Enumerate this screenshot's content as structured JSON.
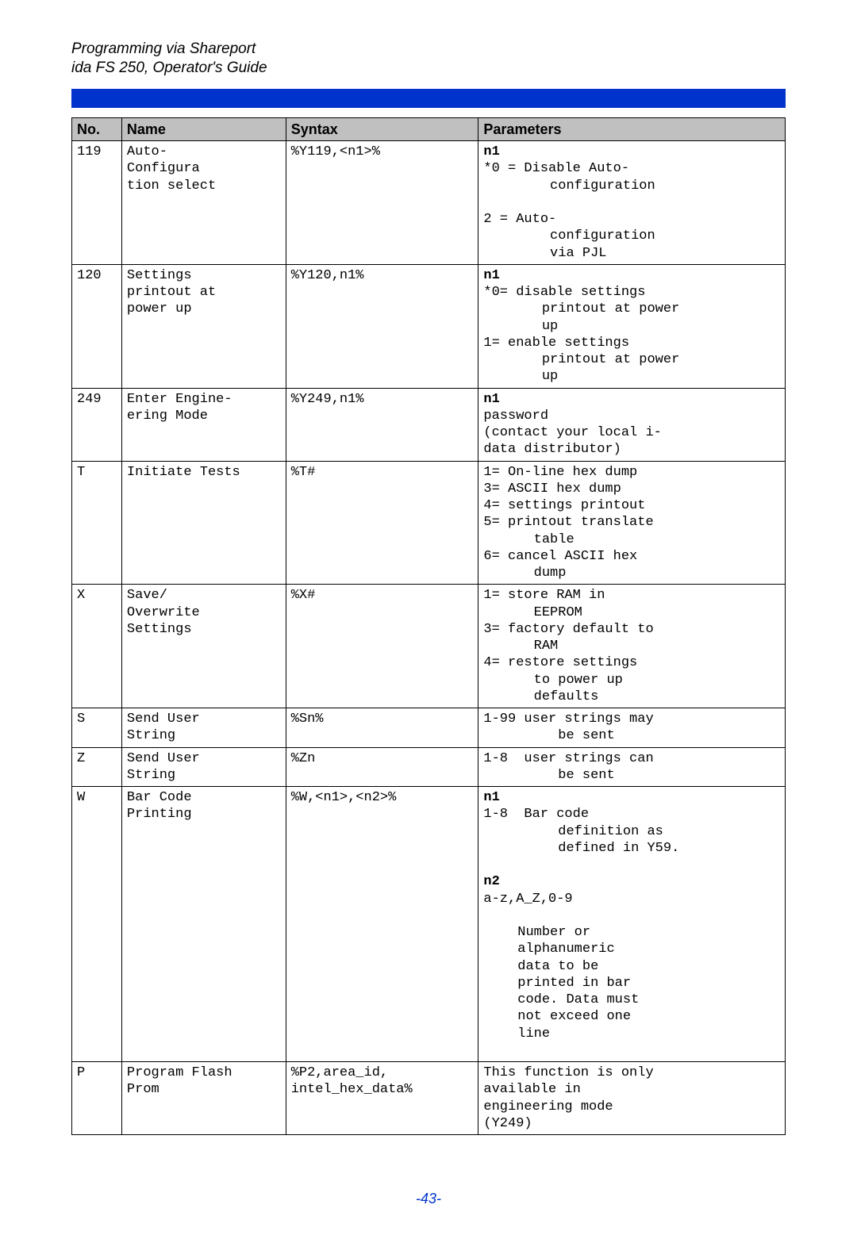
{
  "header": {
    "line1": "Programming via Shareport",
    "line2": "ida FS 250, Operator's Guide"
  },
  "columns": {
    "no": "No.",
    "name": "Name",
    "syntax": "Syntax",
    "params": "Parameters"
  },
  "rows": [
    {
      "no": "119",
      "name": "Auto-\nConfigura\ntion select",
      "syntax": "%Y119,<n1>%",
      "params_html": "<b>n1</b><br><div class='hang'>*0 = Disable Auto-<br>&nbsp;&nbsp;&nbsp;&nbsp;&nbsp;configuration</div><br><div class='hang'>2  = Auto-<br>&nbsp;&nbsp;&nbsp;&nbsp;&nbsp;configuration<br>&nbsp;&nbsp;&nbsp;&nbsp;&nbsp;via PJL</div>"
    },
    {
      "no": "120",
      "name": "Settings\nprintout at\npower up",
      "syntax": "%Y120,n1%",
      "params_html": "<b>n1</b><br><div class='hang'>*0= disable settings<br>&nbsp;&nbsp;&nbsp;&nbsp;printout at power<br>&nbsp;&nbsp;&nbsp;&nbsp;up</div><div class='hang'>1=&nbsp;enable settings<br>&nbsp;&nbsp;&nbsp;&nbsp;printout at power<br>&nbsp;&nbsp;&nbsp;&nbsp;up</div>"
    },
    {
      "no": "249",
      "name": "Enter Engine-\nering Mode",
      "syntax": "%Y249,n1%",
      "params_html": "<b>n1</b><br>password<br>(contact your local i-<br>data distributor)"
    },
    {
      "no": "T",
      "name": "Initiate Tests",
      "syntax": "%T#",
      "params_html": "<div class='hang'>1= On-line hex dump</div><div class='hang'>3= ASCII hex dump</div><div class='hang'>4= settings printout</div><div class='hang'>5= printout translate<br>&nbsp;&nbsp;&nbsp;table</div><div class='hang'>6= cancel ASCII hex<br>&nbsp;&nbsp;&nbsp;dump</div>"
    },
    {
      "no": "X",
      "name": "Save/\nOverwrite\nSettings",
      "syntax": "%X#",
      "params_html": "<div class='hang'>1= store RAM in<br>&nbsp;&nbsp;&nbsp;EEPROM</div><div class='hang'>3= factory default to<br>&nbsp;&nbsp;&nbsp;RAM</div><div class='hang'>4= restore settings<br>&nbsp;&nbsp;&nbsp;to power up<br>&nbsp;&nbsp;&nbsp;defaults</div>"
    },
    {
      "no": "S",
      "name": "Send User\nString",
      "syntax": "%Sn%",
      "params_html": "<div class='hang2'>1-99 user strings may<br>&nbsp;&nbsp;&nbsp;&nbsp;&nbsp;be sent</div>"
    },
    {
      "no": "Z",
      "name": "Send User\nString",
      "syntax": "%Zn",
      "params_html": "<div class='hang2'>1-8&nbsp;&nbsp;user strings can<br>&nbsp;&nbsp;&nbsp;&nbsp;&nbsp;be sent</div>"
    },
    {
      "no": "W",
      "name": "Bar Code\nPrinting",
      "syntax": "%W,<n1>,<n2>%",
      "params_html": "<b>n1</b><br><div class='hang2'>1-8&nbsp;&nbsp;Bar code<br>&nbsp;&nbsp;&nbsp;&nbsp;&nbsp;definition as<br>&nbsp;&nbsp;&nbsp;&nbsp;&nbsp;defined in Y59.</div><br><b>n2</b><br>a-z,A_Z,0-9<br><br><div class='indent'>Number or<br>alphanumeric<br>data to be<br>printed in bar<br>code. Data must<br>not exceed one<br>line</div><br>"
    },
    {
      "no": "P",
      "name": "Program Flash\nProm",
      "syntax": "%P2,area_id,\nintel_hex_data%",
      "params_html": "This function is only<br>available in<br>engineering mode<br>(Y249)"
    }
  ],
  "footer": "-43-"
}
